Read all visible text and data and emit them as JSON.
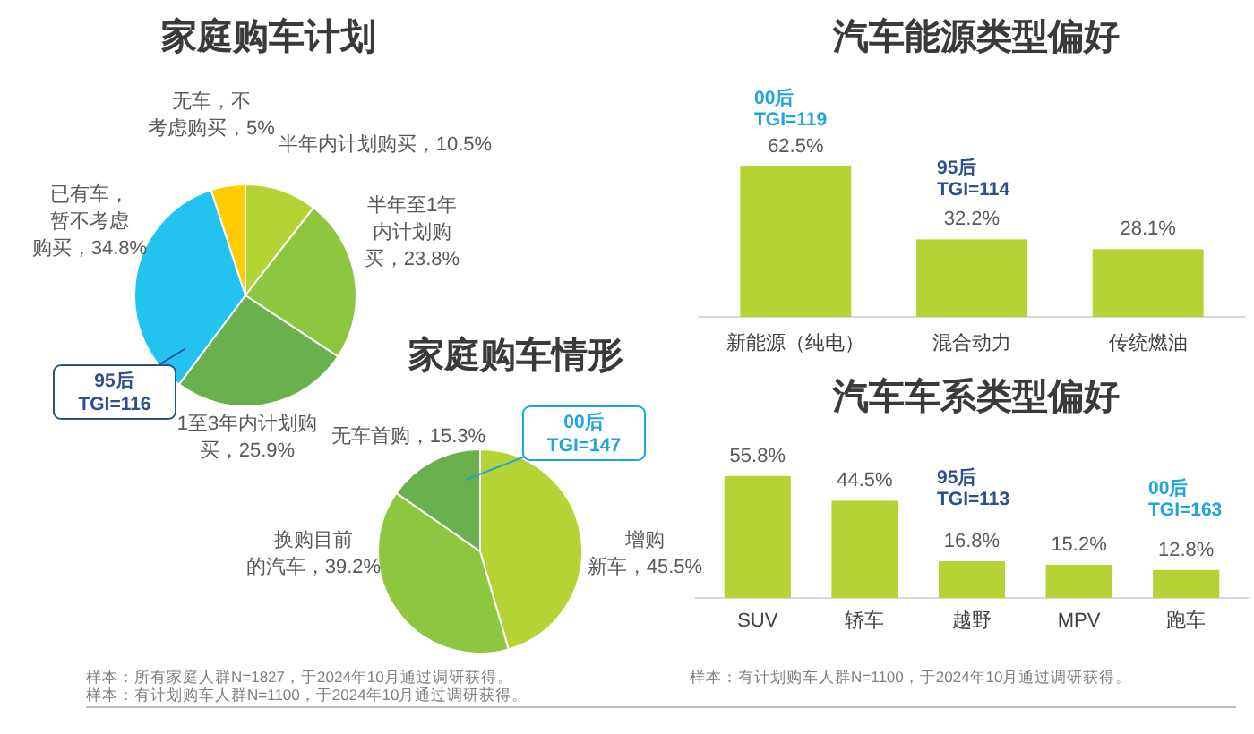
{
  "chart_data": [
    {
      "type": "pie",
      "title": "家庭购车计划",
      "categories": [
        "半年内计划购买",
        "半年至1年内计划购买",
        "1至3年内计划购买",
        "已有车，暂不考虑购买",
        "无车，不考虑购买"
      ],
      "values": [
        10.5,
        23.8,
        25.9,
        34.8,
        5
      ],
      "value_labels": [
        "10.5%",
        "23.8%",
        "25.9%",
        "34.8%",
        "5%"
      ],
      "colors": [
        "#b5d334",
        "#8dc63f",
        "#6ab04c",
        "#22c3ee",
        "#ffcc00"
      ],
      "annotations": [
        {
          "text": "95后\nTGI=116",
          "x": "1至3年内计划购买"
        },
        "样本：所有家庭人群N=1827，于2024年10月通过调研获得。"
      ]
    },
    {
      "type": "pie",
      "title": "家庭购车情形",
      "categories": [
        "增购新车",
        "换购目前的汽车",
        "无车首购"
      ],
      "values": [
        45.5,
        39.2,
        15.3
      ],
      "value_labels": [
        "45.5%",
        "39.2%",
        "15.3%"
      ],
      "colors": [
        "#b5d334",
        "#8dc63f",
        "#6ab04c"
      ],
      "annotations": [
        {
          "text": "00后\nTGI=147",
          "x": "无车首购"
        },
        "样本：有计划购车人群N=1100，于2024年10月通过调研获得。"
      ]
    },
    {
      "type": "bar",
      "title": "汽车能源类型偏好",
      "categories": [
        "新能源（纯电）",
        "混合动力",
        "传统燃油"
      ],
      "values": [
        62.5,
        32.2,
        28.1
      ],
      "value_labels": [
        "62.5%",
        "32.2%",
        "28.1%"
      ],
      "color": "#b5d334",
      "annotations": [
        "00后\nTGI=119",
        "95后\nTGI=114"
      ]
    },
    {
      "type": "bar",
      "title": "汽车车系类型偏好",
      "categories": [
        "SUV",
        "轿车",
        "越野",
        "MPV",
        "跑车"
      ],
      "values": [
        55.8,
        44.5,
        16.8,
        15.2,
        12.8
      ],
      "value_labels": [
        "55.8%",
        "44.5%",
        "16.8%",
        "15.2%",
        "12.8%"
      ],
      "color": "#b5d334",
      "annotations": [
        "95后\nTGI=113",
        "00后\nTGI=163",
        "样本：有计划购车人群N=1100，于2024年10月通过调研获得。"
      ]
    }
  ]
}
